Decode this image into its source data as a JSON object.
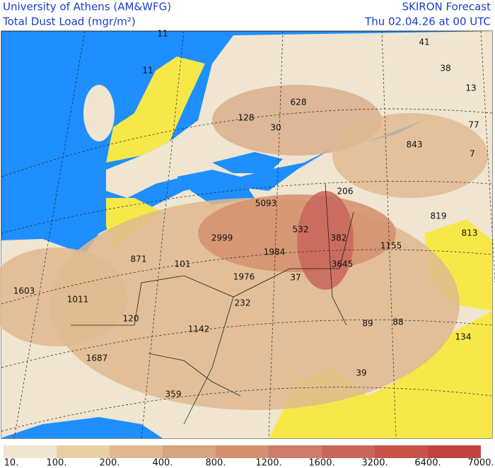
{
  "header": {
    "left_line1": "University of Athens (AM&WFG)",
    "left_line2": "Total Dust Load (mgr/m²)",
    "right_line1": "SKIRON Forecast",
    "right_line2": "Thu 02.04.26 at 00 UTC"
  },
  "map_labels": [
    "41",
    "38",
    "13",
    "628",
    "128",
    "30",
    "843",
    "77",
    "7",
    "11",
    "11",
    "206",
    "5093",
    "819",
    "813",
    "2999",
    "532",
    "382",
    "1155",
    "871",
    "101",
    "1984",
    "3645",
    "1976",
    "37",
    "1603",
    "1011",
    "120",
    "232",
    "1142",
    "89",
    "88",
    "134",
    "1687",
    "39",
    "359"
  ],
  "colorbar": {
    "labels": [
      "10.",
      "100.",
      "200.",
      "400.",
      "800.",
      "1200.",
      "1600.",
      "3200.",
      "6400.",
      "7000."
    ],
    "colors": [
      "#efe5d0",
      "#e7cfa4",
      "#dfb88e",
      "#d6a47f",
      "#d38f6e",
      "#cc7b6c",
      "#c9655b",
      "#c85148",
      "#c24240"
    ]
  }
}
